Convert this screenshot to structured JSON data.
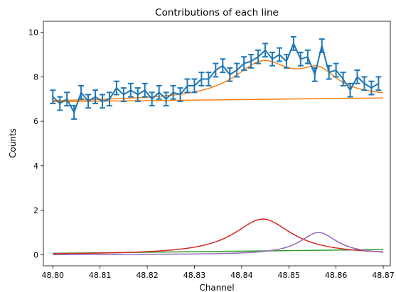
{
  "chart_data": {
    "type": "line",
    "title": "Contributions of each line",
    "xlabel": "Channel",
    "ylabel": "Counts",
    "xlim": [
      48.798,
      48.8715
    ],
    "ylim": [
      -0.5,
      10.5
    ],
    "xticks": [
      "48.80",
      "48.81",
      "48.82",
      "48.83",
      "48.84",
      "48.85",
      "48.86",
      "48.87"
    ],
    "yticks": [
      "0",
      "2",
      "4",
      "6",
      "8",
      "10"
    ],
    "grid": false,
    "legend": "none",
    "data_series": {
      "name": "",
      "color": "#1f77b4",
      "x": [
        48.8,
        48.8015,
        48.803,
        48.8045,
        48.806,
        48.8075,
        48.809,
        48.8105,
        48.812,
        48.8135,
        48.815,
        48.8165,
        48.818,
        48.8195,
        48.821,
        48.8225,
        48.824,
        48.8255,
        48.827,
        48.8285,
        48.83,
        48.8315,
        48.833,
        48.8345,
        48.836,
        48.8375,
        48.839,
        48.8405,
        48.842,
        48.8435,
        48.845,
        48.8465,
        48.848,
        48.8495,
        48.851,
        48.8525,
        48.854,
        48.8555,
        48.857,
        48.8585,
        48.86,
        48.8615,
        48.863,
        48.8645,
        48.866,
        48.8675,
        48.869
      ],
      "y": [
        7.1,
        6.8,
        7.0,
        6.4,
        7.3,
        6.9,
        7.1,
        6.9,
        7.0,
        7.5,
        7.2,
        7.4,
        7.2,
        7.4,
        7.0,
        7.3,
        7.0,
        7.3,
        7.2,
        7.6,
        7.6,
        7.9,
        7.9,
        8.3,
        8.5,
        8.1,
        8.3,
        8.6,
        8.7,
        8.9,
        9.2,
        8.8,
        9.0,
        8.7,
        9.5,
        8.8,
        8.9,
        8.1,
        9.4,
        8.2,
        8.3,
        7.9,
        7.4,
        8.0,
        7.7,
        7.5,
        7.7
      ],
      "yerr": 0.3
    },
    "curves": [
      {
        "name": "",
        "color": "#ff7f0e",
        "type": "background",
        "x0": 48.8,
        "x1": 48.87,
        "y0": 6.88,
        "y1": 7.05
      },
      {
        "name": "",
        "color": "#ff7f0e",
        "type": "total"
      },
      {
        "name": "",
        "color": "#2ca02c",
        "type": "background",
        "x0": 48.8,
        "x1": 48.87,
        "y0": 0.06,
        "y1": 0.23
      },
      {
        "name": "",
        "color": "#d62728",
        "type": "lorentzian",
        "amp": 1.6,
        "center": 48.8445,
        "hwhm": 0.0075
      },
      {
        "name": "",
        "color": "#9467bd",
        "type": "lorentzian",
        "amp": 1.0,
        "center": 48.8563,
        "hwhm": 0.0048
      }
    ]
  }
}
